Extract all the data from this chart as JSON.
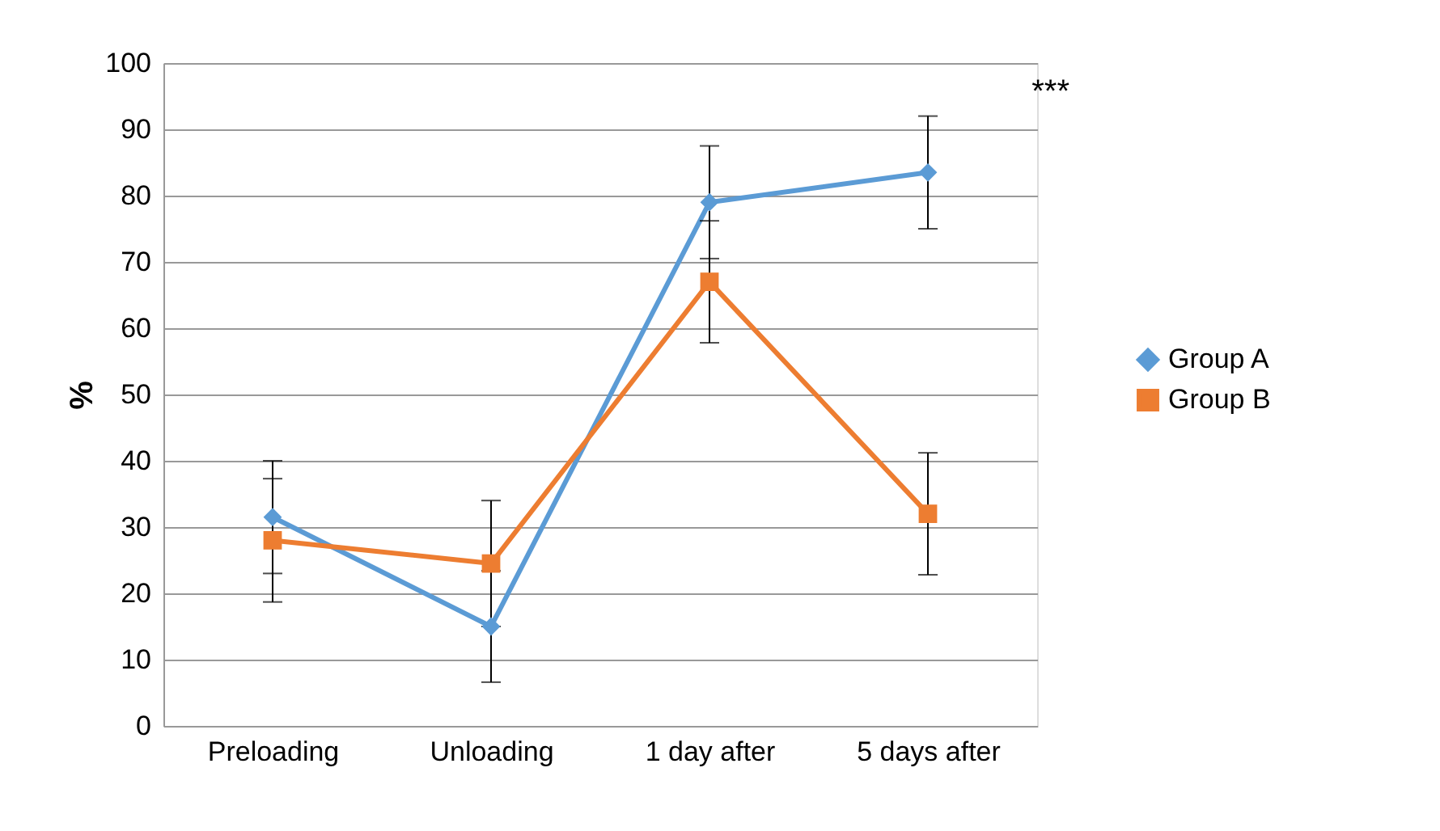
{
  "chart_data": {
    "type": "line",
    "ylabel": "%",
    "categories": [
      "Preloading",
      "Unloading",
      "1 day after",
      "5 days after"
    ],
    "series": [
      {
        "name": "Group A",
        "color": "#5b9bd5",
        "marker": "diamond",
        "values": [
          31.5,
          15,
          79,
          83.5
        ],
        "errors": [
          8.5,
          8.4,
          8.5,
          8.5
        ]
      },
      {
        "name": "Group B",
        "color": "#ed7d31",
        "marker": "square",
        "values": [
          28,
          24.5,
          67,
          32
        ],
        "errors": [
          9.3,
          9.5,
          9.2,
          9.2
        ]
      }
    ],
    "ylim": [
      0,
      100
    ],
    "yticks": [
      0,
      10,
      20,
      30,
      40,
      50,
      60,
      70,
      80,
      90,
      100
    ],
    "grid": "y",
    "legend": "right",
    "line_style": "solid",
    "annotations": [
      "***"
    ]
  }
}
